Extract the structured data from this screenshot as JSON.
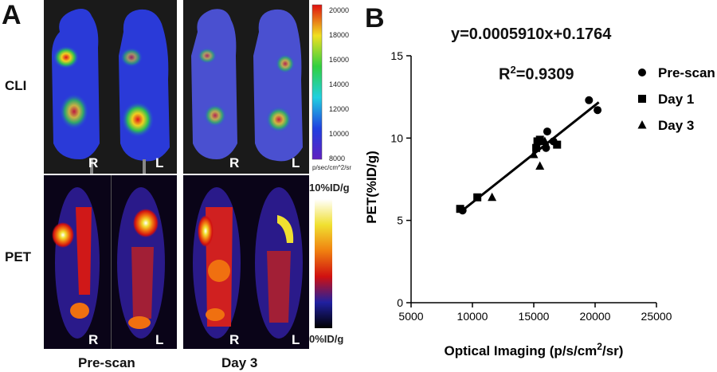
{
  "panel_a": {
    "letter": "A",
    "row_cli": "CLI",
    "row_pet": "PET",
    "col_prescan": "Pre-scan",
    "col_day3": "Day 3",
    "side_right": "R",
    "side_left": "L",
    "cli_scale": {
      "ticks": [
        "20000",
        "18000",
        "16000",
        "14000",
        "12000",
        "10000",
        "8000"
      ],
      "unit": "p/sec/cm^2/sr"
    },
    "pet_scale": {
      "max": "10%ID/g",
      "min": "0%ID/g"
    }
  },
  "panel_b": {
    "letter": "B",
    "equation": "y=0.0005910x+0.1764",
    "r2_label": "R",
    "r2_sup": "2",
    "r2_value": "=0.9309",
    "colors": {
      "ink": "#000000"
    }
  },
  "chart_data": {
    "type": "scatter",
    "xlabel": "Optical Imaging (p/s/cm",
    "xlabel_sup": "2",
    "xlabel_end": "/sr)",
    "ylabel": "PET(%ID/g)",
    "xlim": [
      5000,
      25000
    ],
    "ylim": [
      0,
      15
    ],
    "xticks": [
      5000,
      10000,
      15000,
      20000,
      25000
    ],
    "yticks": [
      0,
      5,
      10,
      15
    ],
    "legend_position": "right",
    "fit_line": {
      "slope": 0.000591,
      "intercept": 0.1764,
      "x_range": [
        9000,
        20300
      ]
    },
    "series": [
      {
        "name": "Pre-scan",
        "marker": "circle",
        "points": [
          [
            16100,
            10.4
          ],
          [
            16000,
            9.4
          ],
          [
            19500,
            12.3
          ],
          [
            20200,
            11.7
          ],
          [
            9200,
            5.6
          ],
          [
            16600,
            9.8
          ]
        ]
      },
      {
        "name": "Day 1",
        "marker": "square",
        "points": [
          [
            15300,
            9.8
          ],
          [
            15500,
            9.9
          ],
          [
            15200,
            9.4
          ],
          [
            16900,
            9.6
          ],
          [
            10400,
            6.4
          ],
          [
            9000,
            5.7
          ]
        ]
      },
      {
        "name": "Day 3",
        "marker": "triangle",
        "points": [
          [
            15500,
            8.3
          ],
          [
            11600,
            6.4
          ],
          [
            15000,
            9.0
          ],
          [
            15900,
            9.8
          ]
        ]
      }
    ]
  }
}
